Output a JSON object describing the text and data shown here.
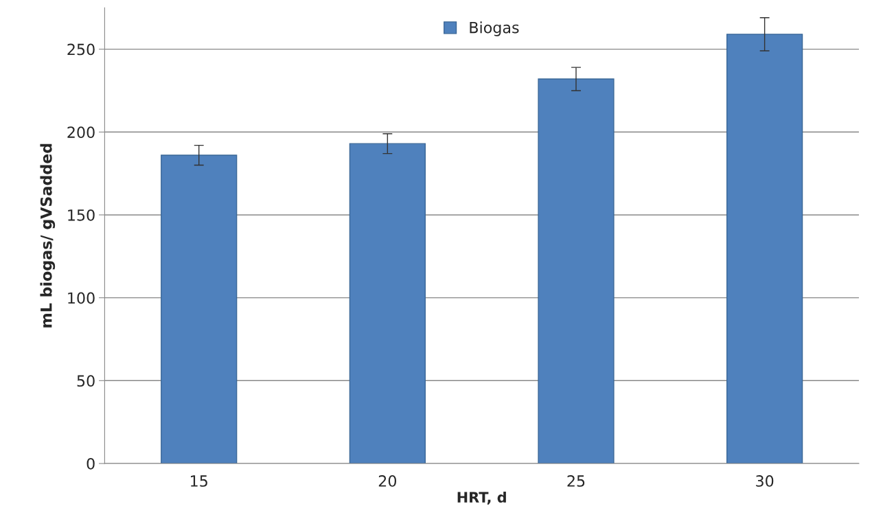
{
  "chart_data": {
    "type": "bar",
    "xlabel": "HRT, d",
    "ylabel": "mL biogas/ gVSadded",
    "categories": [
      "15",
      "20",
      "25",
      "30"
    ],
    "series": [
      {
        "name": "Biogas",
        "color": "#4f81bd",
        "values": [
          186,
          193,
          232,
          259
        ],
        "errors": [
          6,
          6,
          7,
          10
        ]
      }
    ],
    "ylim": [
      0,
      275
    ],
    "yticks": [
      0,
      50,
      100,
      150,
      200,
      250
    ],
    "grid": "y",
    "legend": "top"
  }
}
